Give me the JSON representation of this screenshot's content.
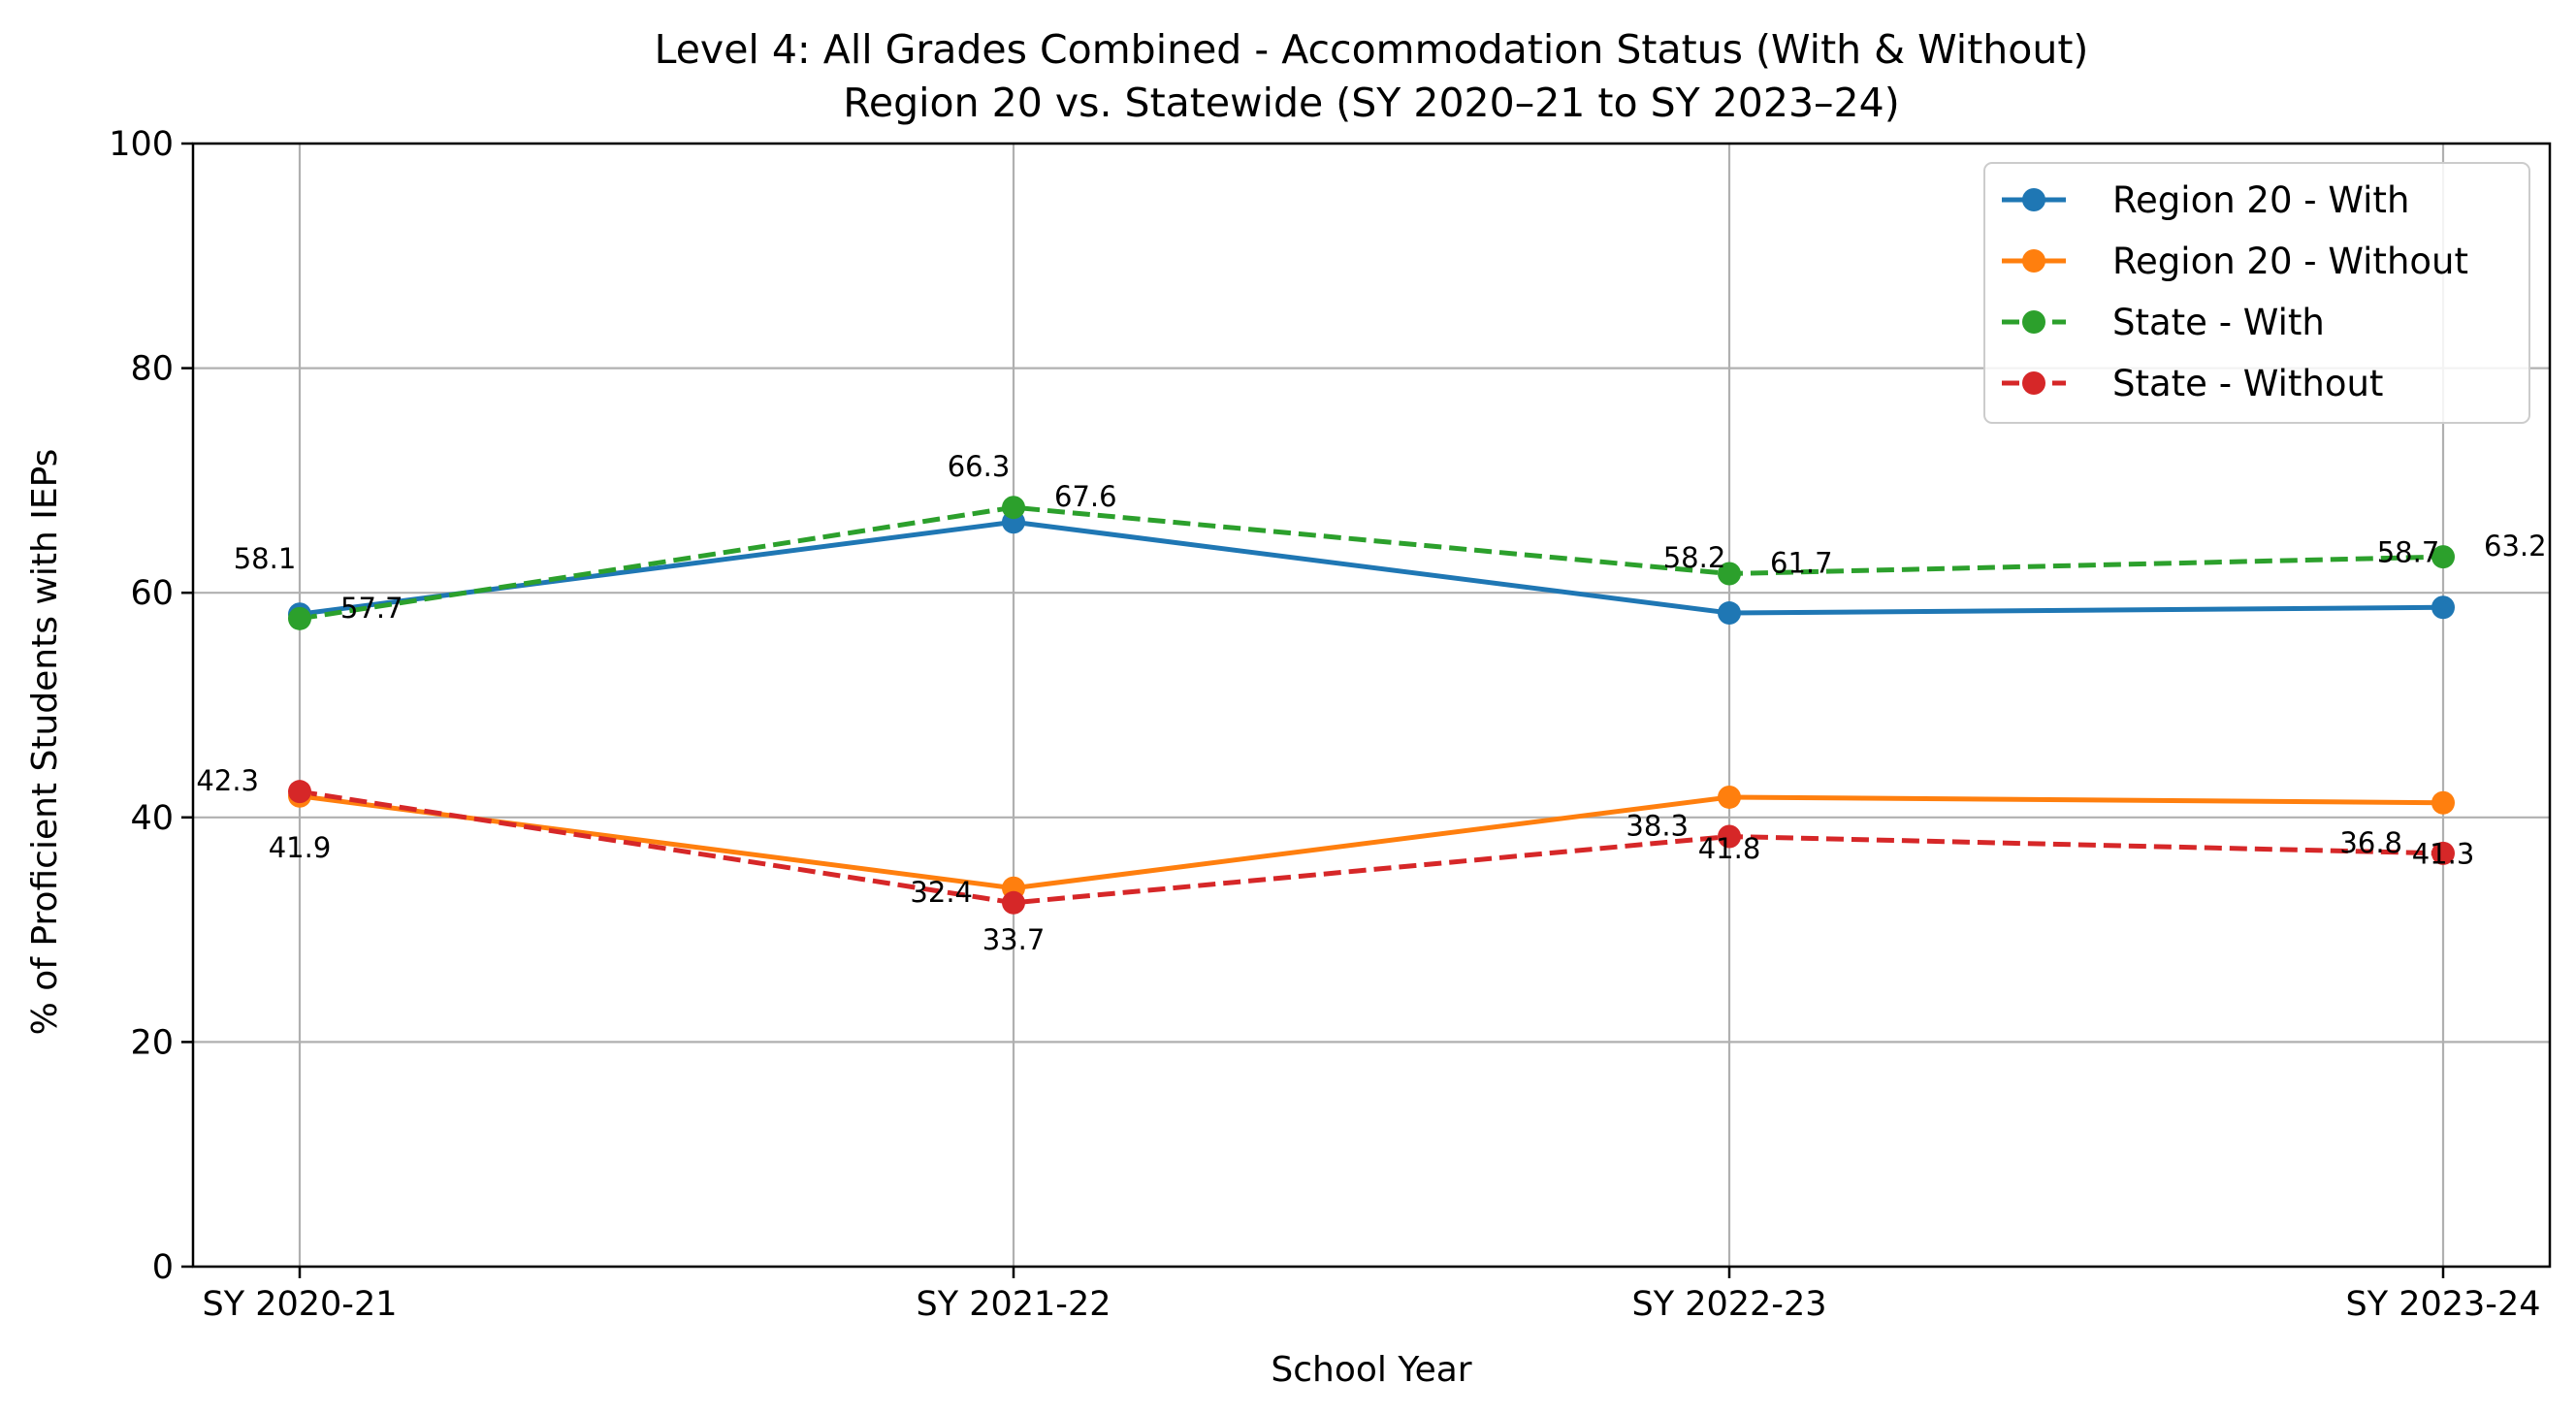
{
  "chart_data": {
    "type": "line",
    "title": "Level 4: All Grades Combined - Accommodation Status (With & Without)",
    "subtitle": "Region 20 vs. Statewide (SY 2020–21 to SY 2023–24)",
    "xlabel": "School Year",
    "ylabel": "% of Proficient Students with IEPs",
    "categories": [
      "SY 2020-21",
      "SY 2021-22",
      "SY 2022-23",
      "SY 2023-24"
    ],
    "ylim": [
      0,
      100
    ],
    "yticks": [
      0,
      20,
      40,
      60,
      80,
      100
    ],
    "grid": true,
    "legend_position": "top-right",
    "series": [
      {
        "name": "Region 20 - With",
        "values": [
          58.1,
          66.3,
          58.2,
          58.7
        ],
        "color": "#1f77b4",
        "dashed": false
      },
      {
        "name": "Region 20 - Without",
        "values": [
          41.9,
          33.7,
          41.8,
          41.3
        ],
        "color": "#ff7f0e",
        "dashed": false
      },
      {
        "name": "State - With",
        "values": [
          57.7,
          67.6,
          61.7,
          63.2
        ],
        "color": "#2ca02c",
        "dashed": true
      },
      {
        "name": "State - Without",
        "values": [
          42.3,
          32.4,
          38.3,
          36.8
        ],
        "color": "#d62728",
        "dashed": true
      }
    ]
  }
}
